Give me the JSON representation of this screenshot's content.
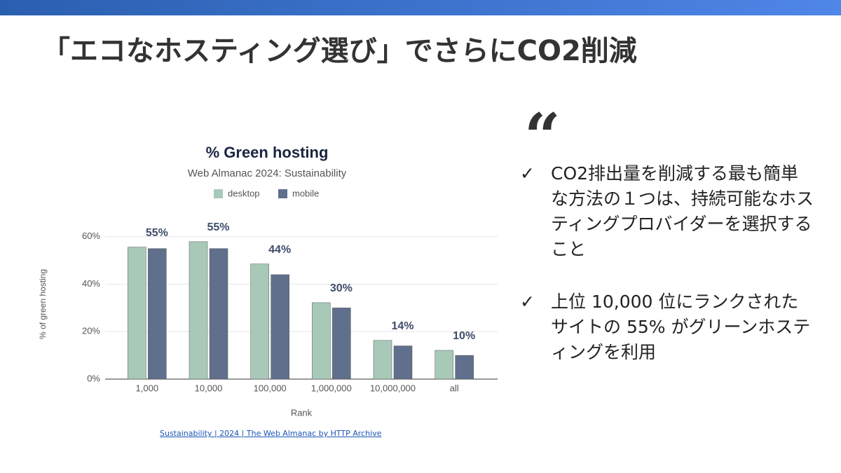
{
  "slide": {
    "title": "「エコなホスティング選び」でさらにCO2削減",
    "bullets": [
      "CO2排出量を削減する最も簡単な方法の１つは、持続可能なホスティングプロバイダーを選択すること",
      "上位 10,000 位にランクされたサイトの 55% がグリーンホスティングを利用"
    ],
    "source": "Sustainability | 2024 | The Web Almanac by HTTP Archive"
  },
  "chart_data": {
    "type": "bar",
    "title": "% Green hosting",
    "subtitle": "Web Almanac 2024: Sustainability",
    "x_label": "Rank",
    "y_label": "% of green hosting",
    "categories": [
      "1,000",
      "10,000",
      "100,000",
      "1,000,000",
      "10,000,000",
      "all"
    ],
    "series": [
      {
        "name": "desktop",
        "color": "#a8c9b8",
        "values": [
          55.6,
          57.9,
          48.5,
          32.2,
          16.3,
          12.1
        ]
      },
      {
        "name": "mobile",
        "color": "#5f6f8c",
        "values": [
          55,
          55,
          44,
          30,
          14,
          10
        ],
        "value_labels": [
          "55%",
          "55%",
          "44%",
          "30%",
          "14%",
          "10%"
        ]
      }
    ],
    "ylim": [
      0,
      62
    ],
    "yticks": [
      {
        "value": 0,
        "label": "0%"
      },
      {
        "value": 20,
        "label": "20%"
      },
      {
        "value": 40,
        "label": "40%"
      },
      {
        "value": 60,
        "label": "60%"
      }
    ],
    "grid": true
  }
}
